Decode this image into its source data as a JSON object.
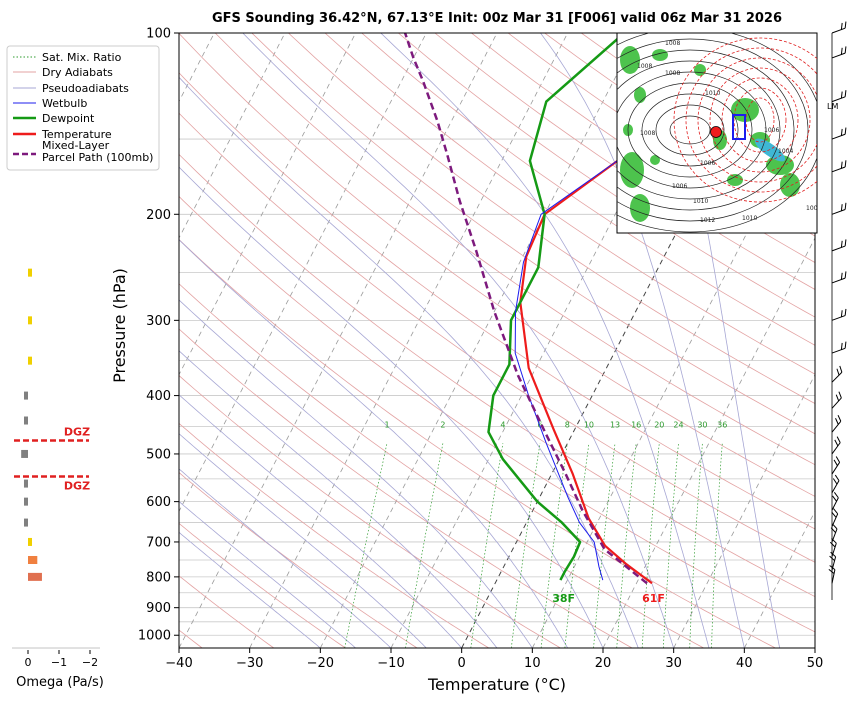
{
  "title": "GFS Sounding 36.42°N, 67.13°E Init: 00z Mar 31 [F006] valid 06z Mar 31 2026",
  "chart_data": {
    "type": "line",
    "title": "GFS Sounding 36.42°N, 67.13°E Init: 00z Mar 31 [F006] valid 06z Mar 31 2026",
    "xlabel": "Temperature (°C)",
    "ylabel": "Pressure (hPa)",
    "xlim": [
      -40,
      50
    ],
    "ylim": [
      1050,
      100
    ],
    "y_scale": "log",
    "x_ticks": [
      "−40",
      "−30",
      "−20",
      "−10",
      "0",
      "10",
      "20",
      "30",
      "40",
      "50"
    ],
    "y_ticks": [
      "100",
      "200",
      "300",
      "400",
      "500",
      "600",
      "700",
      "800",
      "900",
      "1000"
    ],
    "legend": {
      "placement": "top-left",
      "entries": [
        "Sat. Mix. Ratio",
        "Dry Adiabats",
        "Pseudoadiabats",
        "Wetbulb",
        "Dewpoint",
        "Temperature",
        "Mixed-Layer Parcel Path (100mb)"
      ]
    },
    "mixing_ratio_labels": [
      "1",
      "2",
      "4",
      "6",
      "8",
      "10",
      "13",
      "16",
      "20",
      "24",
      "30",
      "36"
    ],
    "series": [
      {
        "name": "Temperature",
        "color": "#ee1c1c",
        "points": [
          [
            22.2,
            820
          ],
          [
            17,
            760
          ],
          [
            12.8,
            710
          ],
          [
            8.5,
            640
          ],
          [
            3,
            540
          ],
          [
            -3,
            455
          ],
          [
            -11,
            360
          ],
          [
            -17,
            280
          ],
          [
            -19.5,
            235
          ],
          [
            -20,
            200
          ],
          [
            -13,
            160
          ],
          [
            -5,
            130
          ],
          [
            -3,
            115
          ],
          [
            2,
            100
          ]
        ]
      },
      {
        "name": "Dewpoint",
        "color": "#159a15",
        "points": [
          [
            9,
            810
          ],
          [
            9,
            785
          ],
          [
            9.2,
            740
          ],
          [
            9,
            700
          ],
          [
            5,
            650
          ],
          [
            0,
            600
          ],
          [
            -8,
            510
          ],
          [
            -12,
            460
          ],
          [
            -14,
            400
          ],
          [
            -14,
            355
          ],
          [
            -17,
            300
          ],
          [
            -17,
            245
          ],
          [
            -20,
            200
          ],
          [
            -26,
            163
          ],
          [
            -28,
            130
          ],
          [
            -22,
            100
          ]
        ]
      },
      {
        "name": "Wetbulb",
        "color": "#1c1cee",
        "points": [
          [
            15,
            810
          ],
          [
            13.5,
            770
          ],
          [
            11,
            700
          ],
          [
            7.5,
            650
          ],
          [
            4,
            590
          ],
          [
            -3,
            480
          ],
          [
            -9,
            400
          ],
          [
            -14,
            340
          ],
          [
            -17,
            290
          ],
          [
            -19.5,
            240
          ],
          [
            -20.5,
            200
          ],
          [
            -13,
            160
          ],
          [
            -5,
            130
          ],
          [
            -3,
            115
          ],
          [
            1.8,
            100
          ]
        ]
      },
      {
        "name": "Mixed-Layer Parcel Path (100mb)",
        "color": "#7d1a7d",
        "points": [
          [
            21.5,
            820
          ],
          [
            13,
            720
          ],
          [
            7,
            620
          ],
          [
            2,
            540
          ],
          [
            -4,
            460
          ],
          [
            -12,
            370
          ],
          [
            -20,
            290
          ],
          [
            -27,
            230
          ],
          [
            -33,
            190
          ],
          [
            -38,
            160
          ],
          [
            -42,
            140
          ],
          [
            -47,
            120
          ],
          [
            -50,
            110
          ],
          [
            -53,
            100
          ]
        ]
      }
    ],
    "annotations": [
      {
        "text": "38F",
        "x": 9.5,
        "p": 870,
        "color": "#159a15"
      },
      {
        "text": "61F",
        "x": 22.5,
        "p": 870,
        "color": "#ee1c1c"
      }
    ]
  },
  "omega_panel": {
    "xlabel": "Omega (Pa/s)",
    "x_ticks": [
      "0",
      "−1",
      "−2"
    ],
    "dgz_label": "DGZ",
    "dgz_levels_hpa": [
      475,
      545
    ],
    "bars": [
      {
        "p": 250,
        "value": -0.05,
        "color": "#f0d000"
      },
      {
        "p": 300,
        "value": -0.07,
        "color": "#f0d000"
      },
      {
        "p": 350,
        "value": -0.05,
        "color": "#f0d000"
      },
      {
        "p": 400,
        "value": 0.05,
        "color": "#808080"
      },
      {
        "p": 440,
        "value": 0.12,
        "color": "#808080"
      },
      {
        "p": 500,
        "value": 0.22,
        "color": "#808080"
      },
      {
        "p": 560,
        "value": 0.13,
        "color": "#808080"
      },
      {
        "p": 600,
        "value": 0.05,
        "color": "#808080"
      },
      {
        "p": 650,
        "value": 0.05,
        "color": "#808080"
      },
      {
        "p": 700,
        "value": -0.05,
        "color": "#f0d000"
      },
      {
        "p": 750,
        "value": -0.3,
        "color": "#f08040"
      },
      {
        "p": 800,
        "value": -0.45,
        "color": "#e07050"
      }
    ]
  },
  "inset_map": {
    "type": "synoptic-map",
    "contour_labels": [
      "1008",
      "1008",
      "1006",
      "1010",
      "1012",
      "1006",
      "1008",
      "1008",
      "1010",
      "1006",
      "1004",
      "1006",
      "1010"
    ],
    "marker": "red-dot"
  },
  "side_label": "LM"
}
